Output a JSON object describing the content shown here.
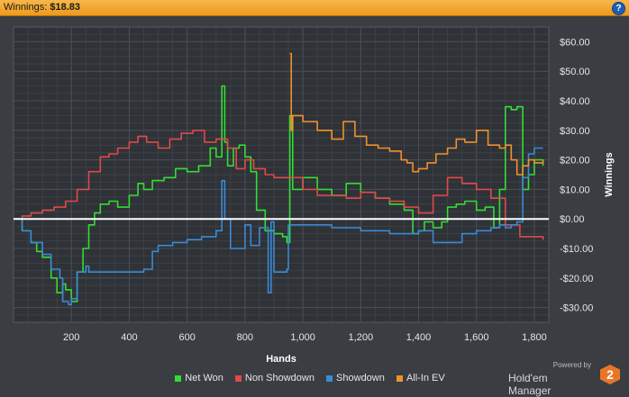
{
  "header": {
    "label": "Winnings:",
    "value": "$18.83",
    "help_icon": "help-icon"
  },
  "branding": {
    "powered_by": "Powered by",
    "name": "Hold'em Manager",
    "badge": "2"
  },
  "colors": {
    "net_won": "#33dd33",
    "non_showdown": "#e04a4a",
    "showdown": "#3a8ad6",
    "all_in_ev": "#f0912c",
    "zero_line": "#ffffff"
  },
  "chart_data": {
    "type": "line",
    "xlabel": "Hands",
    "ylabel": "Winnings",
    "xlim": [
      0,
      1850
    ],
    "ylim": [
      -35,
      65
    ],
    "x_ticks": [
      200,
      400,
      600,
      800,
      1000,
      1200,
      1400,
      1600,
      1800
    ],
    "x_tick_labels": [
      "200",
      "400",
      "600",
      "800",
      "1,000",
      "1,200",
      "1,400",
      "1,600",
      "1,800"
    ],
    "y_ticks": [
      60,
      50,
      40,
      30,
      20,
      10,
      0,
      -10,
      -20,
      -30
    ],
    "y_tick_labels": [
      "$60.00",
      "$50.00",
      "$40.00",
      "$30.00",
      "$20.00",
      "$10.00",
      "$0.00",
      "-$10.00",
      "-$20.00",
      "-$30.00"
    ],
    "grid": true,
    "legend_position": "bottom",
    "series": [
      {
        "name": "Net Won",
        "color": "#33dd33",
        "x": [
          0,
          30,
          60,
          80,
          100,
          130,
          150,
          170,
          180,
          200,
          220,
          240,
          260,
          280,
          300,
          330,
          360,
          400,
          430,
          450,
          480,
          520,
          560,
          600,
          640,
          680,
          700,
          720,
          730,
          740,
          760,
          780,
          800,
          820,
          840,
          870,
          900,
          930,
          945,
          955,
          965,
          1000,
          1050,
          1100,
          1150,
          1200,
          1250,
          1300,
          1350,
          1380,
          1400,
          1420,
          1450,
          1480,
          1500,
          1530,
          1560,
          1600,
          1630,
          1660,
          1680,
          1700,
          1720,
          1740,
          1760,
          1780,
          1800,
          1830
        ],
        "y": [
          0,
          -4,
          -8,
          -11,
          -13,
          -20,
          -25,
          -22,
          -24,
          -28,
          -18,
          -10,
          -2,
          2,
          5,
          6,
          4,
          8,
          12,
          10,
          13,
          14,
          17,
          16,
          18,
          24,
          21,
          45,
          26,
          18,
          24,
          25,
          21,
          16,
          3,
          -4,
          -5,
          -6,
          -8,
          35,
          10,
          14,
          10,
          8,
          12,
          9,
          7,
          5,
          3,
          -5,
          -4,
          -1,
          -3,
          -1,
          4,
          5,
          6,
          3,
          4,
          -3,
          10,
          38,
          37,
          38,
          10,
          15,
          20,
          18
        ]
      },
      {
        "name": "Non Showdown",
        "color": "#e04a4a",
        "x": [
          0,
          30,
          60,
          100,
          140,
          180,
          220,
          260,
          300,
          330,
          360,
          400,
          430,
          460,
          500,
          540,
          580,
          620,
          660,
          700,
          740,
          770,
          800,
          830,
          870,
          900,
          950,
          1000,
          1050,
          1100,
          1150,
          1200,
          1250,
          1300,
          1350,
          1400,
          1450,
          1500,
          1550,
          1600,
          1650,
          1700,
          1750,
          1800,
          1830
        ],
        "y": [
          0,
          1,
          2,
          3,
          4,
          6,
          10,
          16,
          21,
          22,
          24,
          26,
          28,
          26,
          24,
          27,
          29,
          30,
          26,
          27,
          24,
          17,
          20,
          17,
          15,
          14,
          14,
          10,
          8,
          8,
          7,
          9,
          7,
          6,
          4,
          2,
          8,
          14,
          12,
          10,
          7,
          -2,
          -6,
          -6,
          -7
        ]
      },
      {
        "name": "Showdown",
        "color": "#3a8ad6",
        "x": [
          0,
          30,
          60,
          100,
          130,
          160,
          170,
          190,
          200,
          220,
          250,
          260,
          280,
          300,
          330,
          380,
          430,
          450,
          480,
          500,
          550,
          600,
          650,
          700,
          720,
          730,
          750,
          770,
          800,
          820,
          850,
          880,
          890,
          900,
          930,
          945,
          950,
          960,
          1000,
          1050,
          1100,
          1150,
          1200,
          1250,
          1300,
          1400,
          1450,
          1500,
          1550,
          1600,
          1650,
          1680,
          1700,
          1720,
          1740,
          1760,
          1780,
          1800,
          1830
        ],
        "y": [
          0,
          -4,
          -8,
          -12,
          -17,
          -20,
          -28,
          -29,
          -27,
          -18,
          -16,
          -18,
          -18,
          -18,
          -18,
          -18,
          -18,
          -17,
          -11,
          -9,
          -8,
          -7,
          -6,
          -4,
          13,
          0,
          -10,
          -10,
          -2,
          -9,
          -3,
          -25,
          -1,
          -18,
          -18,
          -17,
          -2,
          -2,
          -2,
          -2,
          -3,
          -3,
          -4,
          -4,
          -5,
          -4,
          -8,
          -8,
          -5,
          -4,
          -3,
          -2,
          -3,
          -2,
          -1,
          14,
          22,
          24,
          24
        ]
      },
      {
        "name": "All-In EV",
        "color": "#f0912c",
        "x": [
          955,
          960,
          965,
          1000,
          1050,
          1100,
          1140,
          1180,
          1220,
          1260,
          1300,
          1340,
          1360,
          1380,
          1400,
          1430,
          1460,
          1500,
          1530,
          1560,
          1600,
          1640,
          1680,
          1700,
          1720,
          1740,
          1760,
          1780,
          1800,
          1830
        ],
        "y": [
          56,
          30,
          35,
          33,
          30,
          27,
          33,
          28,
          25,
          24,
          23,
          20,
          19,
          16,
          17,
          19,
          22,
          24,
          27,
          26,
          30,
          25,
          24,
          25,
          20,
          15,
          18,
          20,
          19,
          20
        ]
      }
    ]
  }
}
